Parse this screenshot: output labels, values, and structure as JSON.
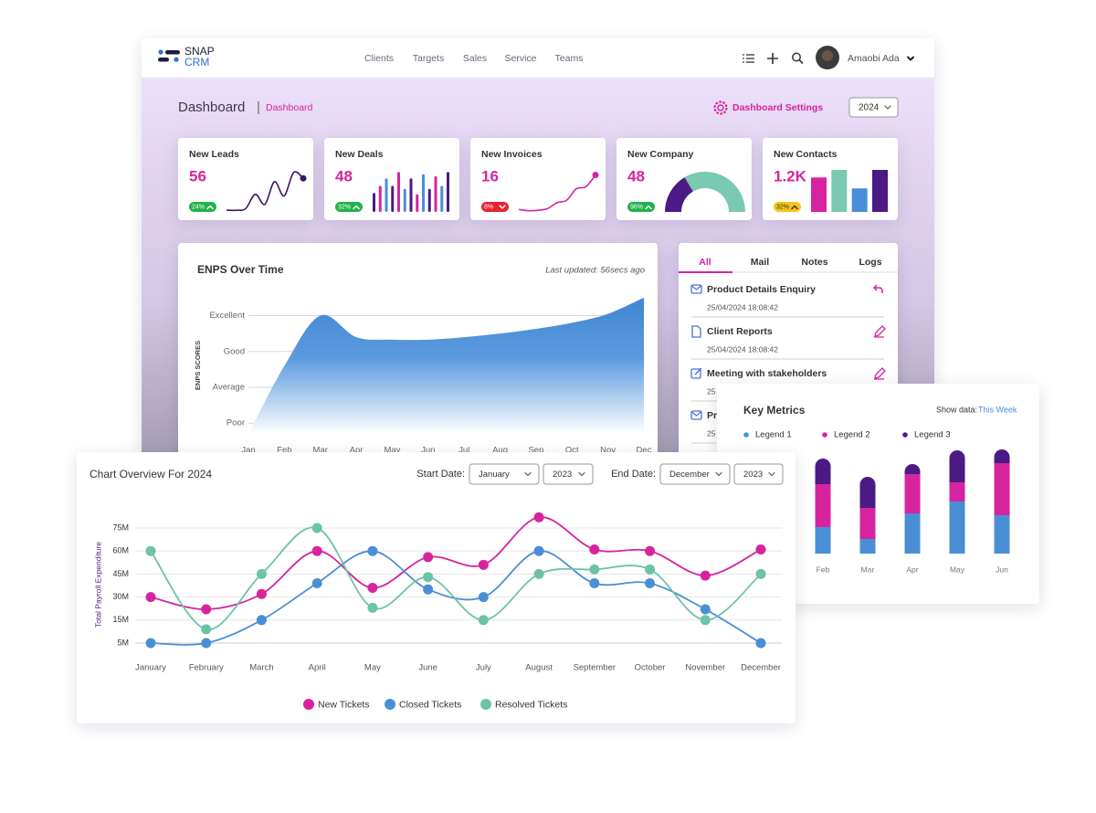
{
  "header": {
    "logo_top": "SNAP",
    "logo_bottom": "CRM",
    "nav": [
      "Clients",
      "Targets",
      "Sales",
      "Service",
      "Teams"
    ],
    "user": "Amaobi Ada"
  },
  "toolbar": {
    "title": "Dashboard",
    "breadcrumb": "Dashboard",
    "settings": "Dashboard Settings",
    "year": "2024"
  },
  "kpis": [
    {
      "title": "New Leads",
      "value": "56",
      "change": "24%",
      "trend": "up",
      "badge_color": "#22b14c",
      "chart": {
        "type": "line",
        "values": [
          4,
          4,
          8,
          42,
          18,
          72,
          38,
          94,
          80
        ],
        "ylim": [
          0,
          100
        ],
        "color": "#3d1566"
      }
    },
    {
      "title": "New Deals",
      "value": "48",
      "change": "32%",
      "trend": "up",
      "badge_color": "#22b14c",
      "chart": {
        "type": "bar",
        "values": [
          45,
          62,
          80,
          62,
          95,
          55,
          80,
          42,
          90,
          55,
          85,
          62,
          95
        ],
        "ylim": [
          0,
          100
        ],
        "colors": [
          "#4b1a85",
          "#d6249f",
          "#4a8fd6"
        ]
      }
    },
    {
      "title": "New Invoices",
      "value": "16",
      "change": "8%",
      "trend": "down",
      "badge_color": "#e8222f",
      "chart": {
        "type": "line",
        "values": [
          6,
          3,
          4,
          8,
          22,
          28,
          55,
          60,
          88
        ],
        "ylim": [
          0,
          100
        ],
        "color": "#d6249f"
      }
    },
    {
      "title": "New Company",
      "value": "48",
      "change": "96%",
      "trend": "up",
      "badge_color": "#22b14c",
      "chart": {
        "type": "gauge",
        "value": 33,
        "ylim": [
          0,
          100
        ],
        "colors": [
          "#4b1a85",
          "#79c9b3"
        ]
      }
    },
    {
      "title": "New Contacts",
      "value": "1.2K",
      "change": "32%",
      "trend": "up",
      "badge_color": "#f5c518",
      "chart": {
        "type": "bar",
        "values": [
          82,
          100,
          56,
          100
        ],
        "ylim": [
          0,
          100
        ],
        "colors": [
          "#d6249f",
          "#79c9b3",
          "#4a8fd6",
          "#4b1a85"
        ]
      }
    }
  ],
  "activity": {
    "tabs": [
      "All",
      "Mail",
      "Notes",
      "Logs"
    ],
    "items": [
      {
        "title": "Product Details Enquiry",
        "date": "25/04/2024 18:08:42"
      },
      {
        "title": "Client Reports",
        "date": "25/04/2024 18:08:42"
      },
      {
        "title": "Meeting with stakeholders",
        "date": "25"
      },
      {
        "title": "Pr",
        "date": "25"
      }
    ]
  },
  "chart_data": [
    {
      "type": "area",
      "title": "ENPS Over Time",
      "subtitle": "Last updated: 56secs ago",
      "y_label": "ENPS SCORES",
      "categories": [
        "Jan",
        "Feb",
        "Mar",
        "Apr",
        "May",
        "Jun",
        "Jul",
        "Aug",
        "Sep",
        "Oct",
        "Nov",
        "Dec"
      ],
      "values": [
        0.7,
        2.6,
        4.0,
        3.4,
        3.33,
        3.33,
        3.4,
        3.5,
        3.63,
        3.8,
        4.05,
        4.5
      ],
      "ylim": [
        0.7,
        4.6
      ],
      "yticks": [
        {
          "value": 1,
          "label": "Poor"
        },
        {
          "value": 2,
          "label": "Average"
        },
        {
          "value": 3,
          "label": "Good"
        },
        {
          "value": 4,
          "label": "Excellent"
        }
      ],
      "color": "#4a8fd6",
      "grid": true
    },
    {
      "type": "stacked_bar",
      "title": "Key Metrics",
      "show_data_label": "Show data:",
      "show_data_value": "This Week",
      "categories": [
        "Feb",
        "Mar",
        "Apr",
        "May",
        "Jun"
      ],
      "series": [
        {
          "name": "Legend 1",
          "color": "#4a8fd6",
          "values": [
            29,
            16,
            44,
            57,
            42
          ]
        },
        {
          "name": "Legend 2",
          "color": "#d6249f",
          "values": [
            47,
            34,
            43,
            21,
            57
          ]
        },
        {
          "name": "Legend 3",
          "color": "#4b1a85",
          "values": [
            28,
            34,
            11,
            35,
            15
          ]
        }
      ],
      "ylim": [
        0,
        120
      ]
    },
    {
      "type": "line",
      "title": "Chart Overview For 2024",
      "start_label": "Start Date:",
      "start_month": "January",
      "start_year": "2023",
      "end_label": "End Date:",
      "end_month": "December",
      "end_year": "2023",
      "y_label": "Total Payroll Expenditure",
      "categories": [
        "January",
        "February",
        "March",
        "April",
        "May",
        "June",
        "July",
        "August",
        "September",
        "October",
        "November",
        "December"
      ],
      "yticks": [
        {
          "value": 5000000,
          "label": "5M"
        },
        {
          "value": 15000000,
          "label": "15M"
        },
        {
          "value": 30000000,
          "label": "30M"
        },
        {
          "value": 45000000,
          "label": "45M"
        },
        {
          "value": 60000000,
          "label": "60M"
        },
        {
          "value": 75000000,
          "label": "75M"
        }
      ],
      "grid": true,
      "series": [
        {
          "name": "New Tickets",
          "color": "#d6249f",
          "values": [
            30000000,
            22000000,
            32000000,
            60000000,
            36000000,
            56000000,
            51000000,
            82000000,
            61000000,
            60000000,
            44000000,
            61000000
          ]
        },
        {
          "name": "Closed Tickets",
          "color": "#4a8fd6",
          "values": [
            5000000,
            5000000,
            15000000,
            39000000,
            60000000,
            35000000,
            30000000,
            60000000,
            39000000,
            39000000,
            22000000,
            5000000
          ]
        },
        {
          "name": "Resolved Tickets",
          "color": "#6cc3a8",
          "values": [
            60000000,
            11000000,
            45000000,
            75000000,
            23000000,
            43000000,
            15000000,
            45000000,
            48000000,
            48000000,
            15000000,
            45000000
          ]
        }
      ]
    }
  ]
}
